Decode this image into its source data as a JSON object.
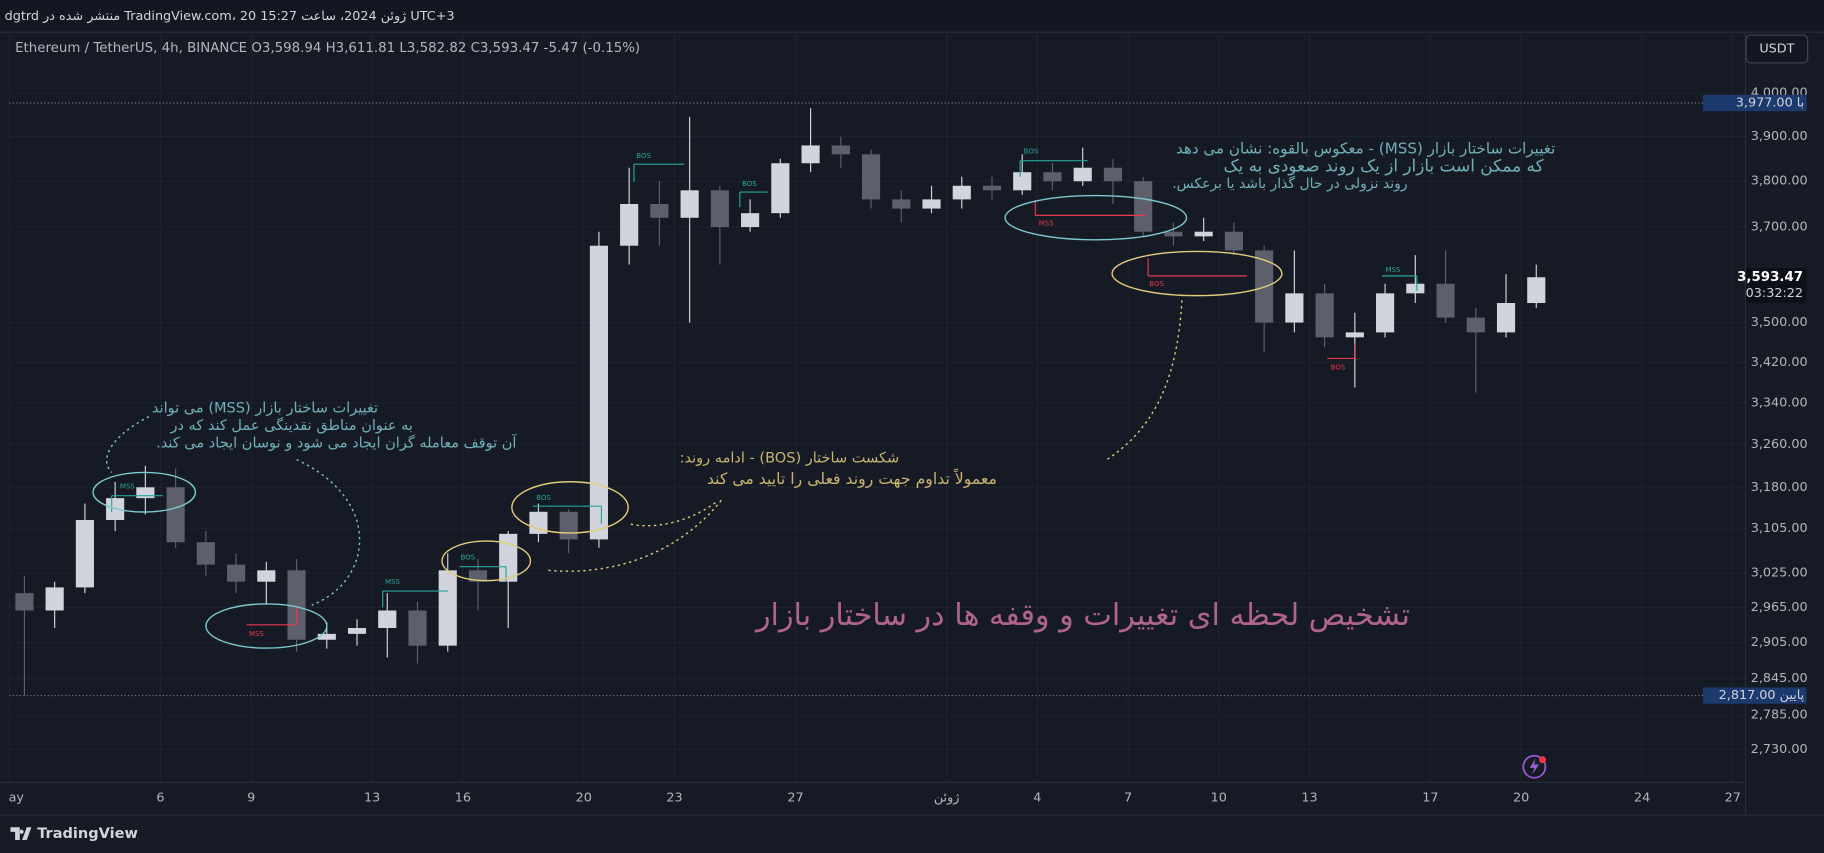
{
  "header": "dgtrd منتشر شده در TradingView.com، 20 ژوئن 2024، ساعت 15:27 UTC+3",
  "chart_data": {
    "type": "candlestick",
    "legend_text": "Ethereum / TetherUS, 4h, BINANCE O3,598.94 H3,611.81 L3,582.82 C3,593.47 -5.47 (-0.15%)",
    "currency": "USDT",
    "title": "تشخیص لحظه ای تغییرات و وقفه ها در ساختار بازار",
    "annotations": [
      [
        "تغییرات ساختار بازار (MSS) می تواند",
        "به عنوان مناطق نقدینگی عمل کند که در",
        "آن توقف معامله گران ایجاد می شود و نوسان ایجاد می کند."
      ],
      [
        "شکست ساختار (BOS) - ادامه روند:",
        "معمولاً تداوم جهت روند فعلی را تایید می کند"
      ],
      [
        "تغییرات ساختار بازار (MSS) - معکوس بالقوه: نشان می دهد",
        "که ممکن است بازار از یک روند صعودی به یک",
        "روند نزولی در حال گذار باشد یا برعکس."
      ]
    ],
    "markers": [
      "MSS",
      "MSS",
      "MSS",
      "BOS",
      "BOS",
      "BOS",
      "BOS",
      "BOS",
      "MSS",
      "BOS",
      "MSS",
      "BOS"
    ],
    "log_scale": true,
    "grid": true,
    "up_color": "#d1d4dc",
    "down_color": "#5d606b",
    "x": [
      0,
      1,
      2,
      3,
      4,
      5,
      6,
      7,
      8,
      9,
      10,
      11,
      12,
      13,
      14,
      15,
      16,
      17,
      18,
      19,
      20,
      21,
      22,
      23,
      24,
      25,
      26,
      27,
      28,
      29,
      30,
      31,
      32,
      33,
      34,
      35,
      36,
      37,
      38,
      39,
      40,
      41,
      42,
      43,
      44,
      45,
      46,
      47,
      48,
      49,
      50
    ],
    "open": [
      2990,
      2960,
      3000,
      3120,
      3160,
      3180,
      3080,
      3040,
      3010,
      3030,
      2910,
      2920,
      2930,
      2960,
      2900,
      3030,
      3010,
      3095,
      3135,
      3085,
      3660,
      3750,
      3720,
      3780,
      3700,
      3730,
      3840,
      3880,
      3860,
      3760,
      3740,
      3760,
      3790,
      3780,
      3820,
      3800,
      3830,
      3800,
      3690,
      3680,
      3690,
      3650,
      3500,
      3560,
      3470,
      3480,
      3560,
      3580,
      3510,
      3480,
      3540
    ],
    "high": [
      3020,
      3010,
      3150,
      3190,
      3220,
      3215,
      3100,
      3060,
      3045,
      3050,
      2940,
      2945,
      2990,
      2975,
      3060,
      3050,
      3100,
      3150,
      3140,
      3690,
      3830,
      3800,
      3945,
      3790,
      3760,
      3850,
      3965,
      3900,
      3870,
      3780,
      3790,
      3810,
      3810,
      3860,
      3840,
      3875,
      3850,
      3810,
      3710,
      3720,
      3710,
      3660,
      3650,
      3580,
      3520,
      3580,
      3640,
      3650,
      3530,
      3600,
      3620
    ],
    "low": [
      2817,
      2930,
      2990,
      3100,
      3130,
      3070,
      3020,
      2990,
      2970,
      2890,
      2895,
      2900,
      2880,
      2870,
      2890,
      2960,
      2930,
      3080,
      3060,
      3070,
      3620,
      3660,
      3500,
      3620,
      3690,
      3720,
      3820,
      3830,
      3740,
      3710,
      3730,
      3740,
      3760,
      3770,
      3780,
      3790,
      3750,
      3680,
      3660,
      3670,
      3640,
      3440,
      3480,
      3450,
      3370,
      3470,
      3540,
      3500,
      3360,
      3470,
      3530
    ],
    "close": [
      2960,
      3000,
      3120,
      3160,
      3180,
      3080,
      3040,
      3010,
      3030,
      2910,
      2920,
      2930,
      2960,
      2900,
      3030,
      3010,
      3095,
      3135,
      3085,
      3660,
      3750,
      3720,
      3780,
      3700,
      3730,
      3840,
      3880,
      3860,
      3760,
      3740,
      3760,
      3790,
      3780,
      3820,
      3800,
      3830,
      3800,
      3690,
      3680,
      3690,
      3650,
      3500,
      3560,
      3470,
      3480,
      3560,
      3580,
      3510,
      3480,
      3540,
      3593.47
    ],
    "xlim": [
      0,
      57.4
    ],
    "xticks": [
      {
        "value": 0,
        "label": "ay"
      },
      {
        "value": 5,
        "label": "6"
      },
      {
        "value": 8,
        "label": "9"
      },
      {
        "value": 12,
        "label": "13"
      },
      {
        "value": 15,
        "label": "16"
      },
      {
        "value": 19,
        "label": "20"
      },
      {
        "value": 22,
        "label": "23"
      },
      {
        "value": 26,
        "label": "27"
      },
      {
        "value": 31,
        "label": "ژوئن"
      },
      {
        "value": 34,
        "label": "4"
      },
      {
        "value": 37,
        "label": "7"
      },
      {
        "value": 40,
        "label": "10"
      },
      {
        "value": 43,
        "label": "13"
      },
      {
        "value": 47,
        "label": "17"
      },
      {
        "value": 50,
        "label": "20"
      },
      {
        "value": 54,
        "label": "24"
      },
      {
        "value": 57,
        "label": "27"
      }
    ],
    "ylim": [
      2679,
      4143
    ],
    "yticks": [
      {
        "value": 4000,
        "label": "4,000.00"
      },
      {
        "value": 3900,
        "label": "3,900.00"
      },
      {
        "value": 3800,
        "label": "3,800.00"
      },
      {
        "value": 3700,
        "label": "3,700.00"
      },
      {
        "value": 3500,
        "label": "3,500.00"
      },
      {
        "value": 3420,
        "label": "3,420.00"
      },
      {
        "value": 3340,
        "label": "3,340.00"
      },
      {
        "value": 3260,
        "label": "3,260.00"
      },
      {
        "value": 3180,
        "label": "3,180.00"
      },
      {
        "value": 3105,
        "label": "3,105.00"
      },
      {
        "value": 3025,
        "label": "3,025.00"
      },
      {
        "value": 2965,
        "label": "2,965.00"
      },
      {
        "value": 2905,
        "label": "2,905.00"
      },
      {
        "value": 2845,
        "label": "2,845.00"
      },
      {
        "value": 2785,
        "label": "2,785.00"
      },
      {
        "value": 2730,
        "label": "2,730.00"
      }
    ],
    "price_lines": [
      {
        "value": 3977,
        "label": "3,977.00 با"
      },
      {
        "value": 2817,
        "label": "پایین 2,817.00"
      }
    ],
    "last_price": {
      "value": 3593.47,
      "label": "3,593.47",
      "countdown": "03:32:22"
    }
  },
  "footer": "TradingView"
}
